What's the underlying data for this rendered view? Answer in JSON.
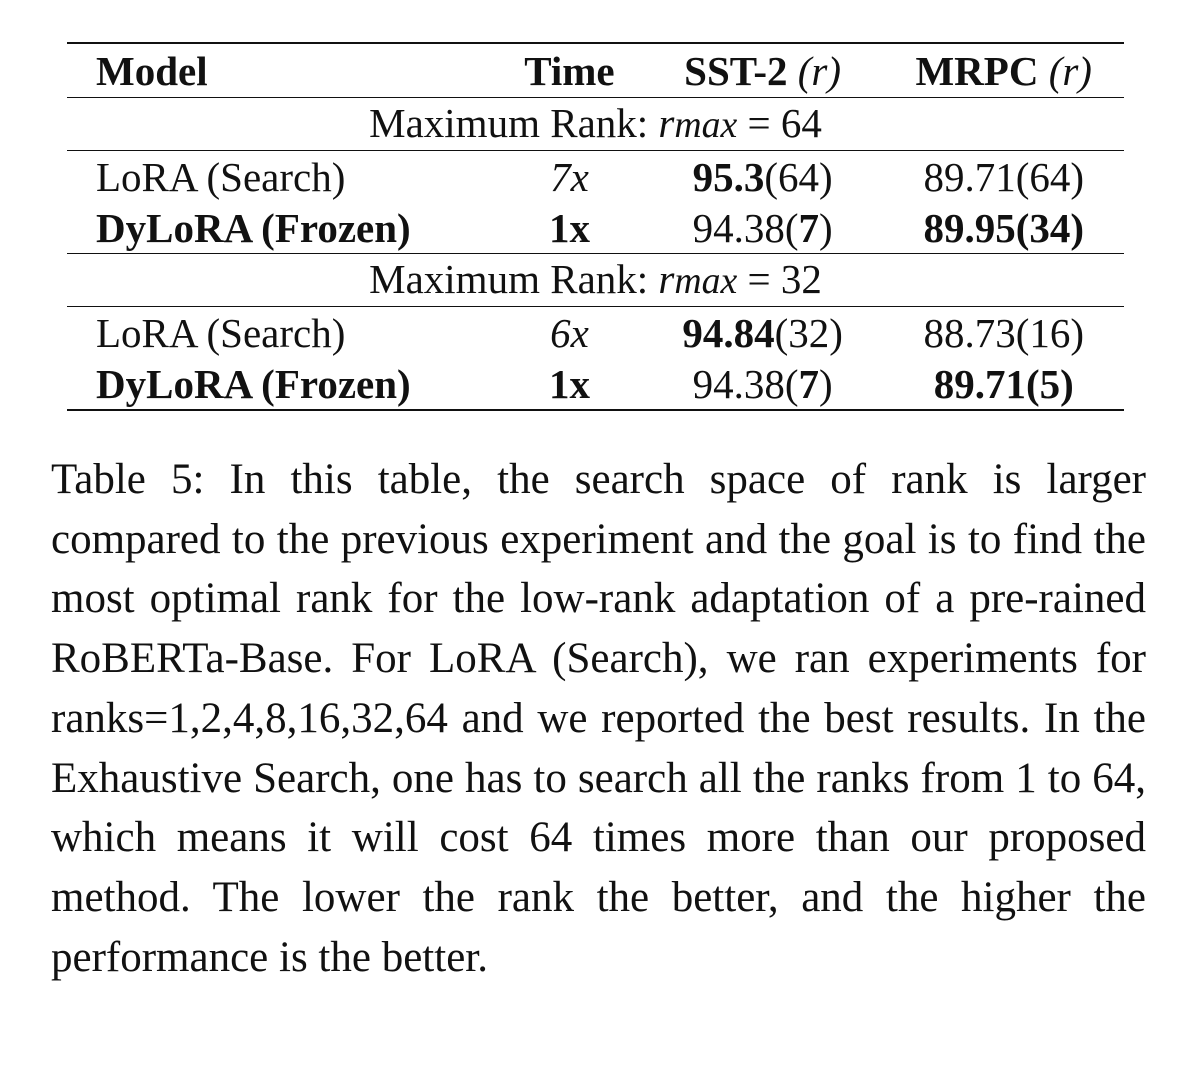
{
  "table": {
    "header": {
      "model": "Model",
      "time": "Time",
      "sst_label": "SST-2",
      "sst_param": "(r)",
      "mrpc_label": "MRPC",
      "mrpc_param": "(r)"
    },
    "groups": [
      {
        "label_prefix": "Maximum Rank: ",
        "var": "r",
        "var_sub": "max",
        "equals": " = ",
        "value": "64",
        "rows": [
          {
            "model": "LoRA (Search)",
            "time": "7x",
            "sst_main": "95.3",
            "sst_rank": "64",
            "mrpc_main": "89.71",
            "mrpc_rank": "64"
          },
          {
            "model": "DyLoRA (Frozen)",
            "time": "1x",
            "sst_main": "94.38",
            "sst_rank": "7",
            "mrpc_main": "89.95",
            "mrpc_rank": "34"
          }
        ]
      },
      {
        "label_prefix": "Maximum Rank: ",
        "var": "r",
        "var_sub": "max",
        "equals": " = ",
        "value": "32",
        "rows": [
          {
            "model": "LoRA (Search)",
            "time": "6x",
            "sst_main": "94.84",
            "sst_rank": "32",
            "mrpc_main": "88.73",
            "mrpc_rank": "16"
          },
          {
            "model": "DyLoRA (Frozen)",
            "time": "1x",
            "sst_main": "94.38",
            "sst_rank": "7",
            "mrpc_main": "89.71",
            "mrpc_rank": "5"
          }
        ]
      }
    ]
  },
  "caption": {
    "text": "Table 5: In this table, the search space of rank is larger compared to the previous experiment and the goal is to find the most optimal rank for the low-rank adaptation of a pre-rained RoBERTa-Base.  For LoRA (Search), we ran experiments for ranks=1,2,4,8,16,32,64 and we reported the best results. In the Exhaustive Search, one has to search all the ranks from 1 to 64, which means it will cost 64 times more than our proposed method. The lower the rank the better, and the higher the performance is the better."
  },
  "colors": {
    "text": "#111111",
    "background": "#ffffff"
  }
}
